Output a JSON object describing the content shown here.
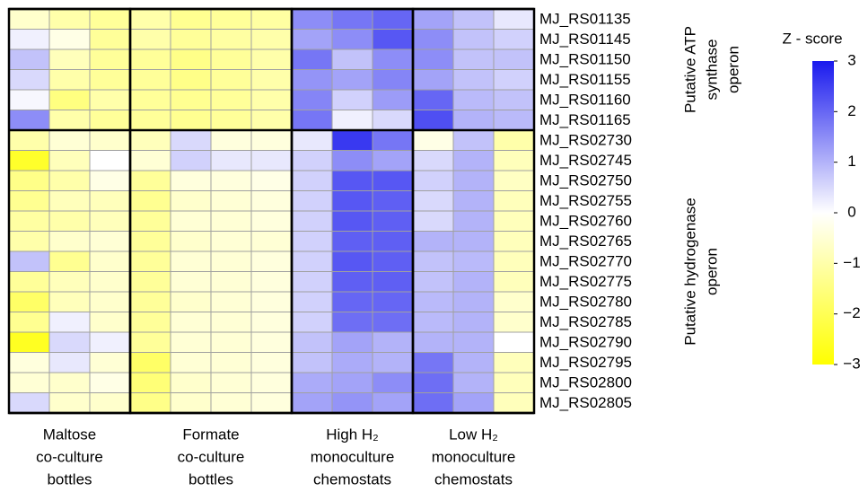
{
  "chart_data": {
    "type": "heatmap",
    "rows": [
      "MJ_RS01135",
      "MJ_RS01145",
      "MJ_RS01150",
      "MJ_RS01155",
      "MJ_RS01160",
      "MJ_RS01165",
      "MJ_RS02730",
      "MJ_RS02745",
      "MJ_RS02750",
      "MJ_RS02755",
      "MJ_RS02760",
      "MJ_RS02765",
      "MJ_RS02770",
      "MJ_RS02775",
      "MJ_RS02780",
      "MJ_RS02785",
      "MJ_RS02790",
      "MJ_RS02795",
      "MJ_RS02800",
      "MJ_RS02805"
    ],
    "column_groups": [
      {
        "lines": [
          "Maltose",
          "co-culture",
          "bottles"
        ],
        "columns": 3
      },
      {
        "lines": [
          "Formate",
          "co-culture",
          "bottles"
        ],
        "columns": 4
      },
      {
        "lines": [
          "High H₂",
          "monoculture",
          "chemostats"
        ],
        "columns": 3
      },
      {
        "lines": [
          "Low H₂",
          "monoculture",
          "chemostats"
        ],
        "columns": 3
      }
    ],
    "row_groups": [
      {
        "lines": [
          "Putative ATP",
          "synthase",
          "operon"
        ],
        "rows": 6
      },
      {
        "lines": [
          "Putative hydrogenase",
          "operon"
        ],
        "rows": 14
      }
    ],
    "values": [
      [
        -0.6,
        -1,
        -1.2,
        -1,
        -1.3,
        -1.2,
        -1.1,
        1.5,
        1.8,
        2.0,
        1.2,
        0.8,
        0.3
      ],
      [
        0.2,
        -0.3,
        -1.2,
        -1,
        -1.2,
        -1.1,
        -1,
        1.2,
        1.5,
        2.2,
        1.5,
        0.8,
        0.6
      ],
      [
        0.8,
        -0.8,
        -1.2,
        -1.2,
        -1.4,
        -1.2,
        -1,
        1.8,
        0.8,
        1.5,
        1.5,
        0.8,
        0.8
      ],
      [
        0.5,
        -1,
        -1.2,
        -1.2,
        -1.4,
        -1.2,
        -1,
        1.4,
        1.2,
        1.6,
        1.2,
        0.8,
        0.6
      ],
      [
        0.1,
        -1.5,
        -1,
        -1.2,
        -1.3,
        -1.2,
        -1,
        1.6,
        0.6,
        1.3,
        2,
        0.9,
        0.8
      ],
      [
        1.5,
        -1,
        -1.2,
        -1.2,
        -1.3,
        -1.2,
        -1,
        1.8,
        0.2,
        0.5,
        2.3,
        1,
        0.9
      ],
      [
        -1,
        -0.5,
        -0.6,
        -0.8,
        0.5,
        -0.4,
        -0.4,
        0.3,
        2.6,
        1.8,
        -0.3,
        0.8,
        -1
      ],
      [
        -2.5,
        -0.8,
        0,
        -0.5,
        0.6,
        0.3,
        0.3,
        0.6,
        1.5,
        1.2,
        0.5,
        1,
        -0.8
      ],
      [
        -1.4,
        -1,
        -0.3,
        -1.2,
        -0.4,
        -0.4,
        -0.3,
        0.6,
        2.2,
        2.2,
        0.6,
        1,
        -0.7
      ],
      [
        -1.3,
        -0.8,
        -0.8,
        -1.3,
        -0.6,
        -0.5,
        -0.4,
        0.6,
        2.2,
        2.1,
        0.5,
        1,
        -0.8
      ],
      [
        -1.1,
        -1,
        -0.8,
        -1.2,
        -0.5,
        -0.5,
        -0.4,
        0.6,
        2.2,
        2.1,
        0.5,
        1,
        -0.8
      ],
      [
        -1,
        -0.6,
        -0.5,
        -1.2,
        -0.6,
        -0.5,
        -0.5,
        0.6,
        2.1,
        2.1,
        1,
        1,
        -0.8
      ],
      [
        0.8,
        -1.3,
        -0.6,
        -1.2,
        -0.5,
        -0.5,
        -0.4,
        0.6,
        2.2,
        2.1,
        0.8,
        0.9,
        -0.8
      ],
      [
        -1.2,
        -0.8,
        -0.6,
        -1.2,
        -0.5,
        -0.5,
        -0.4,
        0.6,
        2.1,
        2.1,
        0.8,
        1,
        -0.8
      ],
      [
        -1.8,
        -0.8,
        -0.6,
        -1.2,
        -0.6,
        -0.5,
        -0.4,
        0.6,
        2,
        2,
        0.9,
        1,
        -0.6
      ],
      [
        -1.3,
        0.2,
        -0.6,
        -1.2,
        -0.5,
        -0.5,
        -0.4,
        0.6,
        1.9,
        1.9,
        0.9,
        1,
        -0.6
      ],
      [
        -2.6,
        0.5,
        0.2,
        -1.2,
        -0.5,
        -0.5,
        -0.4,
        0.8,
        1.2,
        1,
        1,
        1,
        0
      ],
      [
        -0.4,
        0.3,
        -0.5,
        -1.8,
        -0.5,
        -0.5,
        -0.4,
        0.8,
        1.1,
        1,
        1.8,
        1,
        -0.8
      ],
      [
        -0.5,
        -0.6,
        -0.3,
        -1.6,
        -0.6,
        -0.5,
        -0.4,
        1.1,
        1.2,
        1.5,
        1.9,
        1,
        -0.8
      ],
      [
        0.5,
        -0.6,
        -0.6,
        -1.4,
        -0.6,
        -0.5,
        -0.4,
        1.2,
        1.4,
        1.2,
        1.9,
        1.2,
        -0.8
      ]
    ],
    "colorbar_title": "Z - score",
    "zlim": [
      -3,
      3
    ],
    "zticks": [
      3,
      2,
      1,
      0,
      {
        "value": -1,
        "label": "−1"
      },
      {
        "value": -2,
        "label": "−2"
      },
      {
        "value": -3,
        "label": "−3"
      }
    ],
    "colors": {
      "low": "#ffff00",
      "mid": "#ffffff",
      "high": "#1a1aee"
    }
  }
}
